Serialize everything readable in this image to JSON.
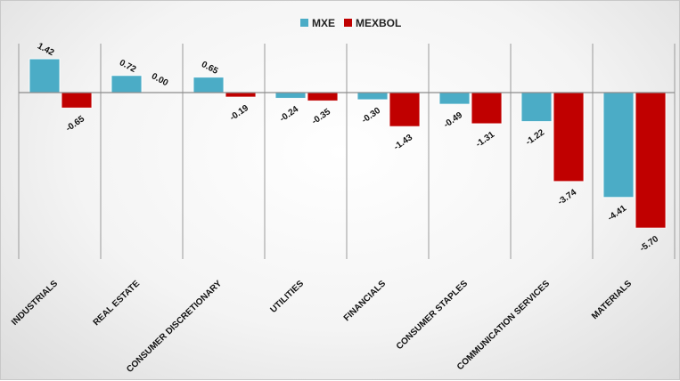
{
  "chart_data": {
    "type": "bar",
    "categories": [
      "INDUSTRIALS",
      "REAL ESTATE",
      "CONSUMER DISCRETIONARY",
      "UTILITIES",
      "FINANCIALS",
      "CONSUMER STAPLES",
      "COMMUNICATION SERVICES",
      "MATERIALS"
    ],
    "series": [
      {
        "name": "MXE",
        "color": "#4bacc6",
        "values": [
          1.42,
          0.72,
          0.65,
          -0.24,
          -0.3,
          -0.49,
          -1.22,
          -4.41
        ],
        "labels": [
          "1.42",
          "0.72",
          "0.65",
          "-0.24",
          "-0.30",
          "-0.49",
          "-1.22",
          "-4.41"
        ]
      },
      {
        "name": "MEXBOL",
        "color": "#c00000",
        "values": [
          -0.65,
          0.0,
          -0.19,
          -0.35,
          -1.43,
          -1.31,
          -3.74,
          -5.7
        ],
        "labels": [
          "-0.65",
          "0.00",
          "-0.19",
          "-0.35",
          "-1.43",
          "-1.31",
          "-3.74",
          "-5.70"
        ]
      }
    ],
    "ylim": [
      -7.2,
      2.5
    ],
    "legend_position": "top-center",
    "grid": false
  }
}
